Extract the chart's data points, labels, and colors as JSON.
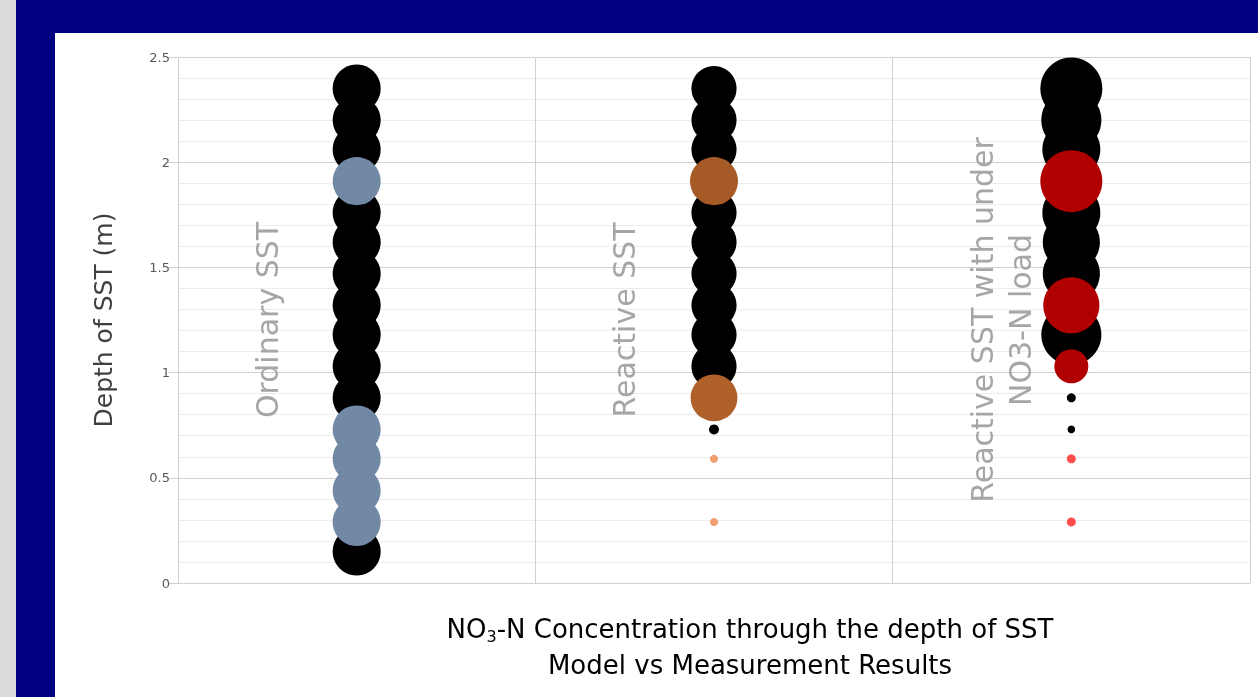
{
  "chart_data": {
    "type": "bubble",
    "title": "NO$_{3}$-N Concentration through the depth of SST\nModel vs Measurement Results",
    "ylabel": "Depth of SST (m)",
    "annotations": [
      "Ordinary SST",
      "Reactive SST",
      "Reactive SST with under\nNO3-N load"
    ],
    "categories": [
      null,
      null,
      null
    ],
    "ylim": [
      0,
      2.5
    ],
    "yticks": [
      0,
      0.5,
      1,
      1.5,
      2,
      2.5
    ],
    "grid": true,
    "marker": "circle",
    "series": [
      {
        "color": "#000000",
        "values": [
          2.35,
          2.35,
          2.35
        ],
        "sizes": [
          0.6,
          0.53,
          1
        ]
      },
      {
        "color": "#000000",
        "values": [
          2.2,
          2.2,
          2.2
        ],
        "sizes": [
          0.6,
          0.53,
          0.94
        ]
      },
      {
        "color": "#000000",
        "values": [
          2.06,
          2.06,
          2.06
        ],
        "sizes": [
          0.6,
          0.53,
          0.875
        ]
      },
      {
        "color": "#000000",
        "values": [
          1.76,
          1.76,
          1.76
        ],
        "sizes": [
          0.6,
          0.53,
          0.875
        ]
      },
      {
        "color": "#000000",
        "values": [
          1.62,
          1.62,
          1.62
        ],
        "sizes": [
          0.6,
          0.53,
          0.85
        ]
      },
      {
        "color": "#000000",
        "values": [
          1.47,
          1.47,
          1.47
        ],
        "sizes": [
          0.6,
          0.53,
          0.85
        ]
      },
      {
        "color": "#000000",
        "values": [
          1.32,
          1.32,
          null
        ],
        "sizes": [
          0.6,
          0.53,
          null
        ]
      },
      {
        "color": "#000000",
        "values": [
          1.18,
          1.18,
          1.18
        ],
        "sizes": [
          0.6,
          0.53,
          0.94
        ]
      },
      {
        "color": "#000000",
        "values": [
          1.03,
          1.03,
          null
        ],
        "sizes": [
          0.6,
          0.53,
          null
        ]
      },
      {
        "color": "#000000",
        "values": [
          0.88,
          null,
          0.88
        ],
        "sizes": [
          0.6,
          null,
          0.021
        ]
      },
      {
        "color": "#000000",
        "values": [
          null,
          0.73,
          0.73
        ],
        "sizes": [
          null,
          0.026,
          0.015
        ]
      },
      {
        "color": "#000000",
        "values": [
          0.15,
          null,
          null
        ],
        "sizes": [
          0.6,
          null,
          null
        ]
      },
      {
        "colors": [
          "#7189a4",
          "#a65a26",
          "#b00000"
        ],
        "values": [
          1.91,
          1.91,
          1.91
        ],
        "sizes": [
          0.6,
          0.6,
          1
        ]
      },
      {
        "colors": [
          null,
          null,
          "#b00000"
        ],
        "values": [
          null,
          null,
          1.32
        ],
        "sizes": [
          null,
          null,
          0.82
        ]
      },
      {
        "colors": [
          null,
          null,
          "#b00000"
        ],
        "values": [
          null,
          null,
          1.03
        ],
        "sizes": [
          null,
          null,
          0.3
        ]
      },
      {
        "colors": [
          null,
          "#b0602a",
          null
        ],
        "values": [
          null,
          0.88,
          null
        ],
        "sizes": [
          null,
          0.57,
          null
        ]
      },
      {
        "colors": [
          "#7189a4",
          null,
          null
        ],
        "values": [
          0.73,
          null,
          null
        ],
        "sizes": [
          0.6,
          null,
          null
        ]
      },
      {
        "colors": [
          "#7189a4",
          "#f0a070",
          "#ff4d4d"
        ],
        "values": [
          0.59,
          0.59,
          0.59
        ],
        "sizes": [
          0.6,
          0.017,
          0.021
        ]
      },
      {
        "colors": [
          "#7189a4",
          null,
          null
        ],
        "values": [
          0.44,
          null,
          null
        ],
        "sizes": [
          0.6,
          null,
          null
        ]
      },
      {
        "colors": [
          "#7189a4",
          "#f0a070",
          "#ff4d4d"
        ],
        "values": [
          0.29,
          0.29,
          0.29
        ],
        "sizes": [
          0.6,
          0.017,
          0.021
        ]
      }
    ]
  }
}
